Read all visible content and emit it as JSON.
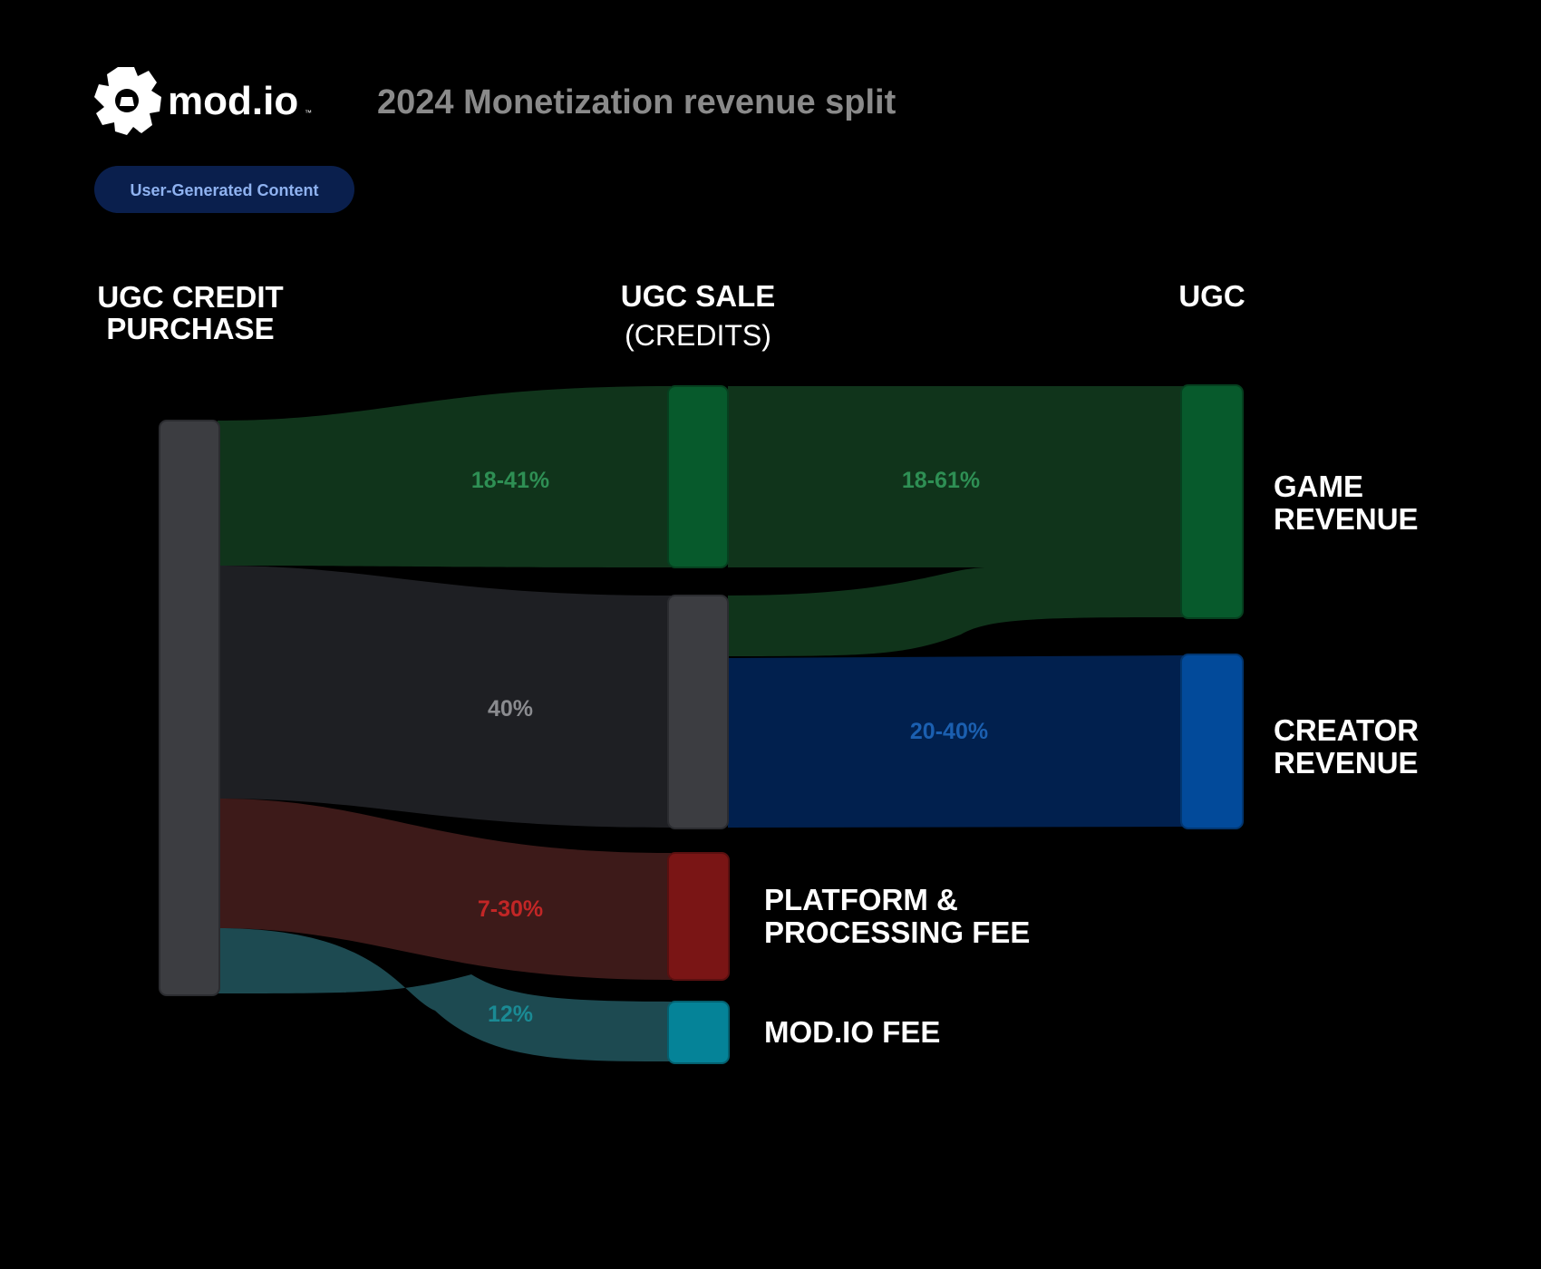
{
  "brand": {
    "name": "mod.io",
    "tm": "™",
    "reg": "®"
  },
  "title": "2024 Monetization revenue split",
  "badge": {
    "label": "User-Generated Content"
  },
  "columns": {
    "source": [
      "UGC CREDIT",
      "PURCHASE"
    ],
    "middle": {
      "line1": "UGC SALE",
      "line2": "(CREDITS)"
    },
    "right": "UGC"
  },
  "colors": {
    "background": "#000000",
    "node_gray": "#3c3d41",
    "flow_gray": "#1e1f23",
    "game_node": "#075a2c",
    "game_flow": "#10341b",
    "game_label": "#2e8f54",
    "creator_node": "#024a9a",
    "creator_flow": "#01204e",
    "creator_label": "#1b5fb0",
    "platform_node": "#7a1515",
    "platform_flow": "#3d1a19",
    "platform_label": "#c22626",
    "modio_node": "#058398",
    "modio_flow": "#1d4a51",
    "modio_label": "#1a8a94",
    "gray_label": "#8a8b8f",
    "badge_bg": "#0a1f4d",
    "badge_text": "#8fb2f0",
    "title_text": "#8a8a8a"
  },
  "chart_data": {
    "type": "sankey",
    "nodes": [
      {
        "id": "purchase",
        "label": "UGC CREDIT PURCHASE",
        "color": "node_gray"
      },
      {
        "id": "sale",
        "label": "UGC SALE (CREDITS)",
        "color": "game_node"
      },
      {
        "id": "sale_rest",
        "label": "",
        "color": "node_gray"
      },
      {
        "id": "platform",
        "label": "PLATFORM & PROCESSING FEE",
        "lines": [
          "PLATFORM &",
          "PROCESSING FEE"
        ],
        "color": "platform_node"
      },
      {
        "id": "modio",
        "label": "MOD.IO FEE",
        "lines": [
          "MOD.IO FEE"
        ],
        "color": "modio_node"
      },
      {
        "id": "game",
        "label": "GAME REVENUE",
        "lines": [
          "GAME",
          "REVENUE"
        ],
        "color": "game_node"
      },
      {
        "id": "creator",
        "label": "CREATOR REVENUE",
        "lines": [
          "CREATOR",
          "REVENUE"
        ],
        "color": "creator_node"
      }
    ],
    "links": [
      {
        "from": "purchase",
        "to": "sale",
        "value_label": "18-41%",
        "color": "game_flow",
        "label_color": "game_label"
      },
      {
        "from": "purchase",
        "to": "sale_rest",
        "value_label": "40%",
        "color": "flow_gray",
        "label_color": "gray_label"
      },
      {
        "from": "purchase",
        "to": "platform",
        "value_label": "7-30%",
        "color": "platform_flow",
        "label_color": "platform_label"
      },
      {
        "from": "purchase",
        "to": "modio",
        "value_label": "12%",
        "color": "modio_flow",
        "label_color": "modio_label"
      },
      {
        "from": "sale",
        "to": "game",
        "value_label": "18-61%",
        "color": "game_flow",
        "label_color": "game_label"
      },
      {
        "from": "sale_rest",
        "to": "game",
        "value_label": "",
        "color": "game_flow"
      },
      {
        "from": "sale_rest",
        "to": "creator",
        "value_label": "20-40%",
        "color": "creator_flow",
        "label_color": "creator_label"
      }
    ]
  }
}
